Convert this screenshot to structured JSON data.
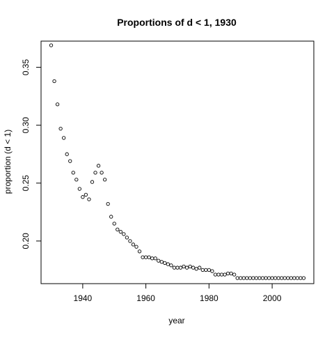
{
  "chart_data": {
    "type": "scatter",
    "title": "Proportions of d < 1, 1930",
    "xlabel": "year",
    "ylabel": "proportion (d < 1)",
    "xlim": [
      1926.8,
      2013.2
    ],
    "ylim": [
      0.1632,
      0.3726
    ],
    "x_ticks": [
      1940,
      1960,
      1980,
      2000
    ],
    "x_tick_labels": [
      "1940",
      "1960",
      "1980",
      "2000"
    ],
    "y_ticks": [
      0.2,
      0.25,
      0.3,
      0.35
    ],
    "y_tick_labels": [
      "0.20",
      "0.25",
      "0.30",
      "0.35"
    ],
    "grid": false,
    "legend": "none",
    "marker": "open-circle",
    "series": [
      {
        "name": "proportion",
        "x": [
          1930,
          1931,
          1932,
          1933,
          1934,
          1935,
          1936,
          1937,
          1938,
          1939,
          1940,
          1941,
          1942,
          1943,
          1944,
          1945,
          1946,
          1947,
          1948,
          1949,
          1950,
          1951,
          1952,
          1953,
          1954,
          1955,
          1956,
          1957,
          1958,
          1959,
          1960,
          1961,
          1962,
          1963,
          1964,
          1965,
          1966,
          1967,
          1968,
          1969,
          1970,
          1971,
          1972,
          1973,
          1974,
          1975,
          1976,
          1977,
          1978,
          1979,
          1980,
          1981,
          1982,
          1983,
          1984,
          1985,
          1986,
          1987,
          1988,
          1989,
          1990,
          1991,
          1992,
          1993,
          1994,
          1995,
          1996,
          1997,
          1998,
          1999,
          2000,
          2001,
          2002,
          2003,
          2004,
          2005,
          2006,
          2007,
          2008,
          2009,
          2010
        ],
        "values": [
          0.369,
          0.338,
          0.318,
          0.297,
          0.289,
          0.275,
          0.269,
          0.259,
          0.253,
          0.245,
          0.238,
          0.24,
          0.236,
          0.251,
          0.259,
          0.265,
          0.259,
          0.253,
          0.232,
          0.221,
          0.215,
          0.21,
          0.208,
          0.206,
          0.203,
          0.2,
          0.197,
          0.195,
          0.191,
          0.186,
          0.186,
          0.186,
          0.185,
          0.185,
          0.183,
          0.182,
          0.181,
          0.18,
          0.179,
          0.177,
          0.177,
          0.177,
          0.178,
          0.177,
          0.178,
          0.177,
          0.176,
          0.177,
          0.175,
          0.175,
          0.175,
          0.174,
          0.171,
          0.171,
          0.171,
          0.171,
          0.172,
          0.172,
          0.171,
          0.168,
          0.168,
          0.168,
          0.168,
          0.168,
          0.168,
          0.168,
          0.168,
          0.168,
          0.168,
          0.168,
          0.168,
          0.168,
          0.168,
          0.168,
          0.168,
          0.168,
          0.168,
          0.168,
          0.168,
          0.168,
          0.168
        ]
      }
    ]
  }
}
